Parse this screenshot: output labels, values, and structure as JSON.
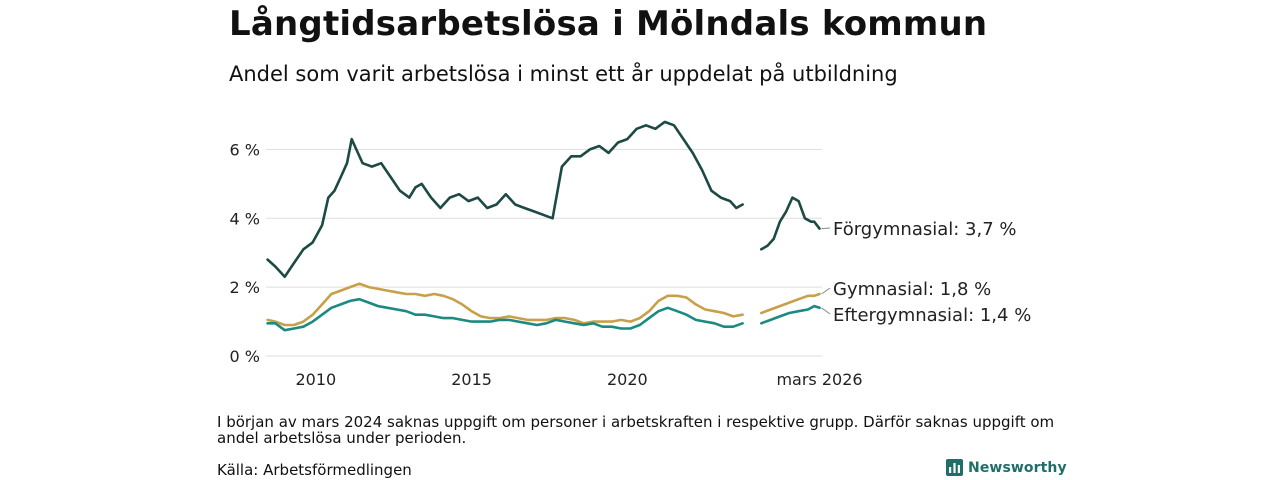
{
  "title": "Långtidsarbetslösa i Mölndals kommun",
  "subtitle": "Andel som varit arbetslösa i minst ett år uppdelat på utbildning",
  "note": "I början av mars 2024 saknas uppgift om personer i arbetskraften i respektive grupp. Därför saknas uppgift om andel arbetslösa under perioden.",
  "source": "Källa: Arbetsförmedlingen",
  "brand": "Newsworthy",
  "colors": {
    "forgymnasial": "#1d4a44",
    "gymnasial": "#c9a04a",
    "eftergymnasial": "#1b8a80",
    "grid": "#dddddd",
    "brand": "#1f6e6a"
  },
  "chart_data": {
    "type": "line",
    "xlim": [
      2008.4,
      2026.25
    ],
    "ylim": [
      0,
      7
    ],
    "yticks": [
      0,
      2,
      4,
      6
    ],
    "ytick_labels": [
      "0 %",
      "2 %",
      "4 %",
      "6 %"
    ],
    "xticks": [
      2010,
      2015,
      2020,
      2026.17
    ],
    "xtick_labels": [
      "2010",
      "2015",
      "2020",
      "mars 2026"
    ],
    "gap": [
      2023.75,
      2024.25
    ],
    "series": [
      {
        "name": "Förgymnasial",
        "label": "Förgymnasial: 3,7 %",
        "points": [
          [
            2008.45,
            2.8
          ],
          [
            2008.7,
            2.6
          ],
          [
            2009.0,
            2.3
          ],
          [
            2009.3,
            2.7
          ],
          [
            2009.6,
            3.1
          ],
          [
            2009.9,
            3.3
          ],
          [
            2010.2,
            3.8
          ],
          [
            2010.4,
            4.6
          ],
          [
            2010.6,
            4.8
          ],
          [
            2010.8,
            5.2
          ],
          [
            2011.0,
            5.6
          ],
          [
            2011.15,
            6.3
          ],
          [
            2011.3,
            6.0
          ],
          [
            2011.5,
            5.6
          ],
          [
            2011.8,
            5.5
          ],
          [
            2012.1,
            5.6
          ],
          [
            2012.4,
            5.2
          ],
          [
            2012.7,
            4.8
          ],
          [
            2013.0,
            4.6
          ],
          [
            2013.2,
            4.9
          ],
          [
            2013.4,
            5.0
          ],
          [
            2013.7,
            4.6
          ],
          [
            2014.0,
            4.3
          ],
          [
            2014.3,
            4.6
          ],
          [
            2014.6,
            4.7
          ],
          [
            2014.9,
            4.5
          ],
          [
            2015.2,
            4.6
          ],
          [
            2015.5,
            4.3
          ],
          [
            2015.8,
            4.4
          ],
          [
            2016.1,
            4.7
          ],
          [
            2016.4,
            4.4
          ],
          [
            2016.7,
            4.3
          ],
          [
            2017.0,
            4.2
          ],
          [
            2017.3,
            4.1
          ],
          [
            2017.6,
            4.0
          ],
          [
            2017.9,
            5.5
          ],
          [
            2018.2,
            5.8
          ],
          [
            2018.5,
            5.8
          ],
          [
            2018.8,
            6.0
          ],
          [
            2019.1,
            6.1
          ],
          [
            2019.4,
            5.9
          ],
          [
            2019.7,
            6.2
          ],
          [
            2020.0,
            6.3
          ],
          [
            2020.3,
            6.6
          ],
          [
            2020.6,
            6.7
          ],
          [
            2020.9,
            6.6
          ],
          [
            2021.2,
            6.8
          ],
          [
            2021.5,
            6.7
          ],
          [
            2021.8,
            6.3
          ],
          [
            2022.1,
            5.9
          ],
          [
            2022.4,
            5.4
          ],
          [
            2022.7,
            4.8
          ],
          [
            2023.0,
            4.6
          ],
          [
            2023.3,
            4.5
          ],
          [
            2023.5,
            4.3
          ],
          [
            2023.7,
            4.4
          ],
          null,
          [
            2024.3,
            3.1
          ],
          [
            2024.5,
            3.2
          ],
          [
            2024.7,
            3.4
          ],
          [
            2024.9,
            3.9
          ],
          [
            2025.1,
            4.2
          ],
          [
            2025.3,
            4.6
          ],
          [
            2025.5,
            4.5
          ],
          [
            2025.7,
            4.0
          ],
          [
            2025.9,
            3.9
          ],
          [
            2026.0,
            3.9
          ],
          [
            2026.17,
            3.7
          ]
        ]
      },
      {
        "name": "Gymnasial",
        "label": "Gymnasial: 1,8 %",
        "points": [
          [
            2008.45,
            1.05
          ],
          [
            2008.7,
            1.0
          ],
          [
            2009.0,
            0.9
          ],
          [
            2009.3,
            0.9
          ],
          [
            2009.6,
            1.0
          ],
          [
            2009.9,
            1.2
          ],
          [
            2010.2,
            1.5
          ],
          [
            2010.5,
            1.8
          ],
          [
            2010.8,
            1.9
          ],
          [
            2011.1,
            2.0
          ],
          [
            2011.4,
            2.1
          ],
          [
            2011.7,
            2.0
          ],
          [
            2012.0,
            1.95
          ],
          [
            2012.3,
            1.9
          ],
          [
            2012.6,
            1.85
          ],
          [
            2012.9,
            1.8
          ],
          [
            2013.2,
            1.8
          ],
          [
            2013.5,
            1.75
          ],
          [
            2013.8,
            1.8
          ],
          [
            2014.1,
            1.75
          ],
          [
            2014.4,
            1.65
          ],
          [
            2014.7,
            1.5
          ],
          [
            2015.0,
            1.3
          ],
          [
            2015.3,
            1.15
          ],
          [
            2015.6,
            1.1
          ],
          [
            2015.9,
            1.1
          ],
          [
            2016.2,
            1.15
          ],
          [
            2016.5,
            1.1
          ],
          [
            2016.8,
            1.05
          ],
          [
            2017.1,
            1.05
          ],
          [
            2017.4,
            1.05
          ],
          [
            2017.7,
            1.1
          ],
          [
            2018.0,
            1.1
          ],
          [
            2018.3,
            1.05
          ],
          [
            2018.6,
            0.95
          ],
          [
            2018.9,
            1.0
          ],
          [
            2019.2,
            1.0
          ],
          [
            2019.5,
            1.0
          ],
          [
            2019.8,
            1.05
          ],
          [
            2020.1,
            1.0
          ],
          [
            2020.4,
            1.1
          ],
          [
            2020.7,
            1.3
          ],
          [
            2021.0,
            1.6
          ],
          [
            2021.3,
            1.75
          ],
          [
            2021.6,
            1.75
          ],
          [
            2021.9,
            1.7
          ],
          [
            2022.2,
            1.5
          ],
          [
            2022.5,
            1.35
          ],
          [
            2022.8,
            1.3
          ],
          [
            2023.1,
            1.25
          ],
          [
            2023.4,
            1.15
          ],
          [
            2023.7,
            1.2
          ],
          null,
          [
            2024.3,
            1.25
          ],
          [
            2024.6,
            1.35
          ],
          [
            2024.9,
            1.45
          ],
          [
            2025.2,
            1.55
          ],
          [
            2025.5,
            1.65
          ],
          [
            2025.8,
            1.75
          ],
          [
            2026.0,
            1.75
          ],
          [
            2026.17,
            1.8
          ]
        ]
      },
      {
        "name": "Eftergymnasial",
        "label": "Eftergymnasial: 1,4 %",
        "points": [
          [
            2008.45,
            0.95
          ],
          [
            2008.7,
            0.95
          ],
          [
            2009.0,
            0.75
          ],
          [
            2009.3,
            0.8
          ],
          [
            2009.6,
            0.85
          ],
          [
            2009.9,
            1.0
          ],
          [
            2010.2,
            1.2
          ],
          [
            2010.5,
            1.4
          ],
          [
            2010.8,
            1.5
          ],
          [
            2011.1,
            1.6
          ],
          [
            2011.4,
            1.65
          ],
          [
            2011.7,
            1.55
          ],
          [
            2012.0,
            1.45
          ],
          [
            2012.3,
            1.4
          ],
          [
            2012.6,
            1.35
          ],
          [
            2012.9,
            1.3
          ],
          [
            2013.2,
            1.2
          ],
          [
            2013.5,
            1.2
          ],
          [
            2013.8,
            1.15
          ],
          [
            2014.1,
            1.1
          ],
          [
            2014.4,
            1.1
          ],
          [
            2014.7,
            1.05
          ],
          [
            2015.0,
            1.0
          ],
          [
            2015.3,
            1.0
          ],
          [
            2015.6,
            1.0
          ],
          [
            2015.9,
            1.05
          ],
          [
            2016.2,
            1.05
          ],
          [
            2016.5,
            1.0
          ],
          [
            2016.8,
            0.95
          ],
          [
            2017.1,
            0.9
          ],
          [
            2017.4,
            0.95
          ],
          [
            2017.7,
            1.05
          ],
          [
            2018.0,
            1.0
          ],
          [
            2018.3,
            0.95
          ],
          [
            2018.6,
            0.9
          ],
          [
            2018.9,
            0.95
          ],
          [
            2019.2,
            0.85
          ],
          [
            2019.5,
            0.85
          ],
          [
            2019.8,
            0.8
          ],
          [
            2020.1,
            0.8
          ],
          [
            2020.4,
            0.9
          ],
          [
            2020.7,
            1.1
          ],
          [
            2021.0,
            1.3
          ],
          [
            2021.3,
            1.4
          ],
          [
            2021.6,
            1.3
          ],
          [
            2021.9,
            1.2
          ],
          [
            2022.2,
            1.05
          ],
          [
            2022.5,
            1.0
          ],
          [
            2022.8,
            0.95
          ],
          [
            2023.1,
            0.85
          ],
          [
            2023.4,
            0.85
          ],
          [
            2023.7,
            0.95
          ],
          null,
          [
            2024.3,
            0.95
          ],
          [
            2024.6,
            1.05
          ],
          [
            2024.9,
            1.15
          ],
          [
            2025.2,
            1.25
          ],
          [
            2025.5,
            1.3
          ],
          [
            2025.8,
            1.35
          ],
          [
            2026.0,
            1.45
          ],
          [
            2026.17,
            1.4
          ]
        ]
      }
    ]
  }
}
